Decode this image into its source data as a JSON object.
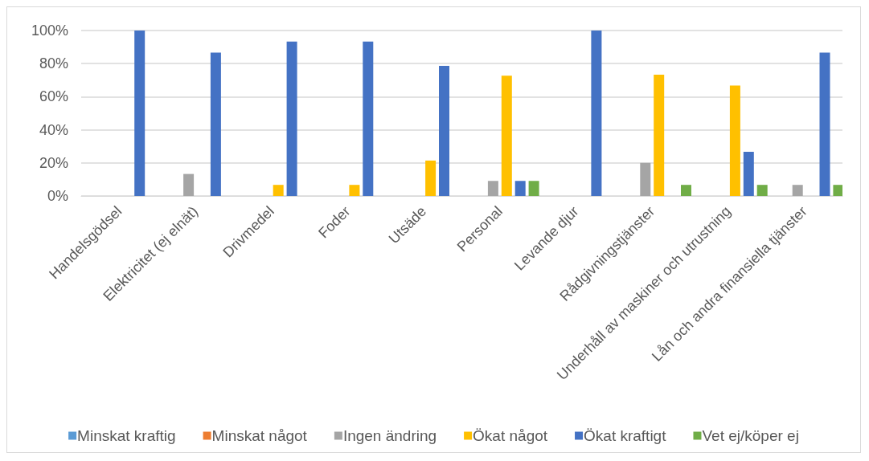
{
  "chart_data": {
    "type": "bar",
    "categories": [
      "Handelsgödsel",
      "Elektricitet (ej elnät)",
      "Drivmedel",
      "Foder",
      "Utsäde",
      "Personal",
      "Levande djur",
      "Rådgivningstjänster",
      "Underhåll av maskiner och utrustning",
      "Lån och andra finansiella tjänster"
    ],
    "series": [
      {
        "name": "Minskat kraftig",
        "color": "#5b9bd5",
        "values": [
          0,
          0,
          0,
          0,
          0,
          0,
          0,
          0,
          0,
          0
        ]
      },
      {
        "name": "Minskat något",
        "color": "#ed7d31",
        "values": [
          0,
          0,
          0,
          0,
          0,
          0,
          0,
          0,
          0,
          0
        ]
      },
      {
        "name": "Ingen ändring",
        "color": "#a5a5a5",
        "values": [
          0,
          13.3,
          0,
          0,
          0,
          9.1,
          0,
          20,
          0,
          6.7
        ]
      },
      {
        "name": "Ökat något",
        "color": "#ffc000",
        "values": [
          0,
          0,
          6.7,
          6.7,
          21.4,
          72.7,
          0,
          73.3,
          66.7,
          0
        ]
      },
      {
        "name": "Ökat kraftigt",
        "color": "#4472c4",
        "values": [
          100,
          86.7,
          93.3,
          93.3,
          78.6,
          9.1,
          100,
          0,
          26.7,
          86.7
        ]
      },
      {
        "name": "Vet ej/köper ej",
        "color": "#70ad47",
        "values": [
          0,
          0,
          0,
          0,
          0,
          9.1,
          0,
          6.7,
          6.7,
          6.7
        ]
      }
    ],
    "ylim": [
      0,
      100
    ],
    "yticks": [
      {
        "value": 0,
        "label": "0%"
      },
      {
        "value": 20,
        "label": "20%"
      },
      {
        "value": 40,
        "label": "40%"
      },
      {
        "value": 60,
        "label": "60%"
      },
      {
        "value": 80,
        "label": "80%"
      },
      {
        "value": 100,
        "label": "100%"
      }
    ],
    "grid": "y",
    "legend": "bottom"
  }
}
